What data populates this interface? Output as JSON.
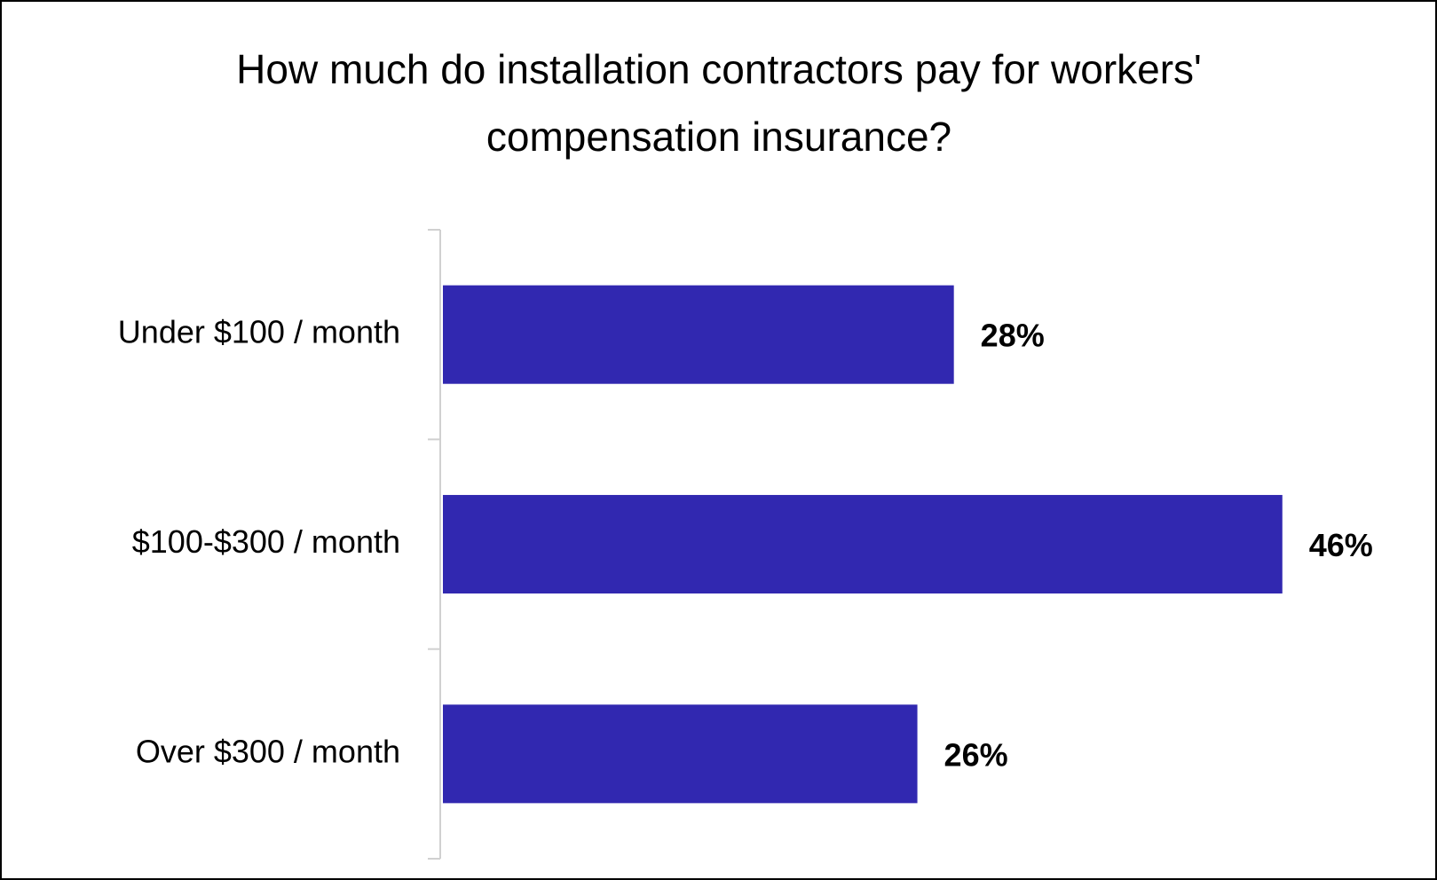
{
  "chart_data": {
    "type": "bar",
    "orientation": "horizontal",
    "title": "How much do installation contractors pay for workers' compensation insurance?",
    "categories": [
      "Under $100 / month",
      "$100-$300 / month",
      "Over $300 / month"
    ],
    "values": [
      28,
      46,
      26
    ],
    "value_labels": [
      "28%",
      "46%",
      "26%"
    ],
    "color": "#3128b0",
    "xlim": [
      0,
      50
    ]
  }
}
